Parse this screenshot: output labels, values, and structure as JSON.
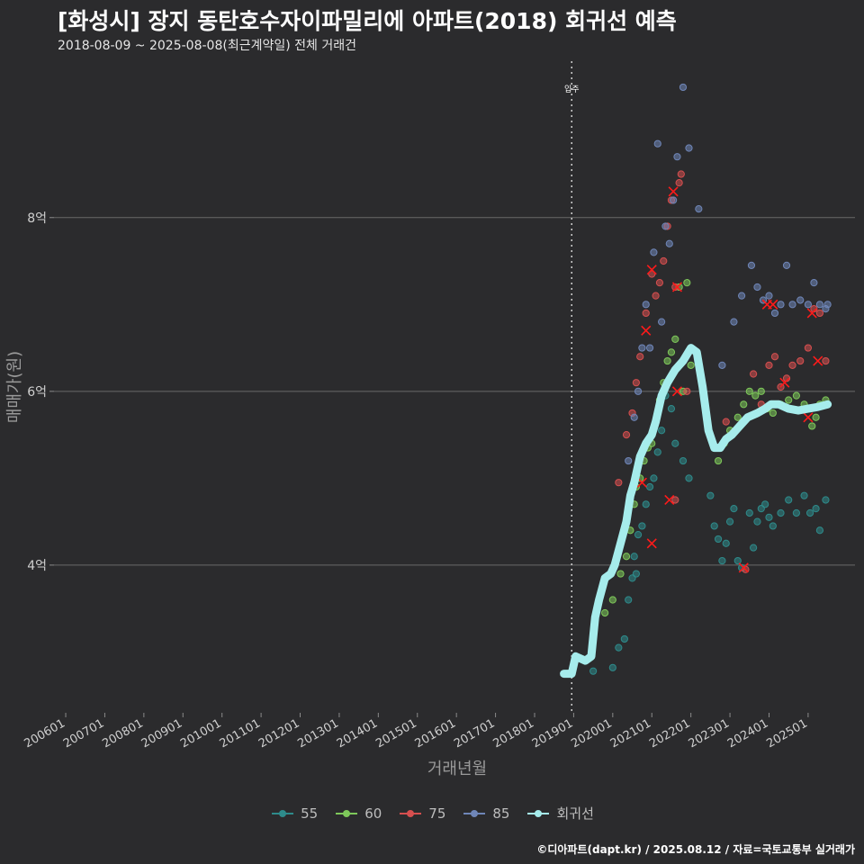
{
  "header": {
    "title": "[화성시] 장지 동탄호수자이파밀리에 아파트(2018) 회귀선 예측",
    "subtitle": "2018-08-09 ~ 2025-08-08(최근계약일) 전체 거래건"
  },
  "footer": {
    "credit": "©디아파트(dapt.kr) / 2025.08.12 / 자료=국토교통부 실거래가"
  },
  "colors": {
    "s55": "#2e8b8b",
    "s60": "#7ec85a",
    "s75": "#d64f4f",
    "s85": "#6f86b8",
    "regression": "#a6ecec",
    "background": "#2b2b2d",
    "grid": "#6a6a6a",
    "marker": "#ff1a1a"
  },
  "chart_data": {
    "type": "scatter",
    "title": "[화성시] 장지 동탄호수자이파밀리에 아파트(2018) 회귀선 예측",
    "xlabel": "거래년월",
    "ylabel": "매매가(원)",
    "x_range": [
      2005.7,
      2026.2
    ],
    "y_range": [
      2.3,
      9.8
    ],
    "y_ticks": [
      {
        "value": 4,
        "label": "4억"
      },
      {
        "value": 6,
        "label": "6억"
      },
      {
        "value": 8,
        "label": "8억"
      }
    ],
    "x_ticks": [
      "200601",
      "200701",
      "200801",
      "200901",
      "201001",
      "201101",
      "201201",
      "201301",
      "201401",
      "201501",
      "201601",
      "201701",
      "201801",
      "201901",
      "202001",
      "202101",
      "202201",
      "202301",
      "202401",
      "202501"
    ],
    "vline": {
      "x": 2018.95,
      "label": "입주"
    },
    "series": [
      {
        "name": "55",
        "color": "#2e8b8b",
        "points": [
          [
            2019.5,
            2.78
          ],
          [
            2020.0,
            2.82
          ],
          [
            2020.15,
            3.05
          ],
          [
            2020.3,
            3.15
          ],
          [
            2020.4,
            3.6
          ],
          [
            2020.5,
            3.85
          ],
          [
            2020.55,
            4.1
          ],
          [
            2020.6,
            3.9
          ],
          [
            2020.65,
            4.35
          ],
          [
            2020.75,
            4.45
          ],
          [
            2020.85,
            4.7
          ],
          [
            2020.95,
            4.9
          ],
          [
            2021.05,
            5.0
          ],
          [
            2021.15,
            5.3
          ],
          [
            2021.25,
            5.55
          ],
          [
            2021.35,
            5.95
          ],
          [
            2021.5,
            5.8
          ],
          [
            2021.6,
            5.4
          ],
          [
            2021.8,
            5.2
          ],
          [
            2021.95,
            5.0
          ],
          [
            2022.5,
            4.8
          ],
          [
            2022.6,
            4.45
          ],
          [
            2022.7,
            4.3
          ],
          [
            2022.8,
            4.05
          ],
          [
            2022.9,
            4.25
          ],
          [
            2023.0,
            4.5
          ],
          [
            2023.1,
            4.65
          ],
          [
            2023.2,
            4.05
          ],
          [
            2023.3,
            3.97
          ],
          [
            2023.5,
            4.6
          ],
          [
            2023.6,
            4.2
          ],
          [
            2023.7,
            4.5
          ],
          [
            2023.8,
            4.65
          ],
          [
            2023.9,
            4.7
          ],
          [
            2024.0,
            4.55
          ],
          [
            2024.1,
            4.45
          ],
          [
            2024.3,
            4.6
          ],
          [
            2024.5,
            4.75
          ],
          [
            2024.7,
            4.6
          ],
          [
            2024.9,
            4.8
          ],
          [
            2025.05,
            4.6
          ],
          [
            2025.2,
            4.65
          ],
          [
            2025.3,
            4.4
          ],
          [
            2025.45,
            4.75
          ]
        ]
      },
      {
        "name": "60",
        "color": "#7ec85a",
        "points": [
          [
            2019.8,
            3.45
          ],
          [
            2020.0,
            3.6
          ],
          [
            2020.2,
            3.9
          ],
          [
            2020.35,
            4.1
          ],
          [
            2020.45,
            4.4
          ],
          [
            2020.55,
            4.7
          ],
          [
            2020.6,
            4.9
          ],
          [
            2020.7,
            5.0
          ],
          [
            2020.8,
            5.2
          ],
          [
            2020.9,
            5.35
          ],
          [
            2021.0,
            5.4
          ],
          [
            2021.1,
            5.65
          ],
          [
            2021.2,
            5.9
          ],
          [
            2021.3,
            6.1
          ],
          [
            2021.4,
            6.35
          ],
          [
            2021.5,
            6.45
          ],
          [
            2021.6,
            6.6
          ],
          [
            2021.7,
            7.2
          ],
          [
            2021.8,
            6.0
          ],
          [
            2021.9,
            7.25
          ],
          [
            2022.0,
            6.3
          ],
          [
            2022.7,
            5.2
          ],
          [
            2022.85,
            5.4
          ],
          [
            2023.0,
            5.55
          ],
          [
            2023.2,
            5.7
          ],
          [
            2023.35,
            5.85
          ],
          [
            2023.5,
            6.0
          ],
          [
            2023.65,
            5.95
          ],
          [
            2023.8,
            6.0
          ],
          [
            2023.95,
            5.8
          ],
          [
            2024.1,
            5.75
          ],
          [
            2024.3,
            5.85
          ],
          [
            2024.5,
            5.9
          ],
          [
            2024.7,
            5.95
          ],
          [
            2024.9,
            5.85
          ],
          [
            2025.1,
            5.6
          ],
          [
            2025.2,
            5.7
          ],
          [
            2025.3,
            5.85
          ],
          [
            2025.45,
            5.9
          ]
        ]
      },
      {
        "name": "75",
        "color": "#d64f4f",
        "points": [
          [
            2020.15,
            4.95
          ],
          [
            2020.35,
            5.5
          ],
          [
            2020.5,
            5.75
          ],
          [
            2020.6,
            6.1
          ],
          [
            2020.7,
            6.4
          ],
          [
            2020.85,
            6.9
          ],
          [
            2021.0,
            7.35
          ],
          [
            2021.1,
            7.1
          ],
          [
            2021.2,
            7.25
          ],
          [
            2021.3,
            7.5
          ],
          [
            2021.4,
            7.9
          ],
          [
            2021.5,
            8.2
          ],
          [
            2021.6,
            7.2
          ],
          [
            2021.7,
            8.4
          ],
          [
            2021.75,
            8.5
          ],
          [
            2021.9,
            6.0
          ],
          [
            2021.6,
            4.75
          ],
          [
            2022.9,
            5.65
          ],
          [
            2023.4,
            3.95
          ],
          [
            2023.6,
            6.2
          ],
          [
            2023.8,
            5.85
          ],
          [
            2024.0,
            6.3
          ],
          [
            2024.15,
            6.4
          ],
          [
            2024.3,
            6.05
          ],
          [
            2024.45,
            6.15
          ],
          [
            2024.6,
            6.3
          ],
          [
            2024.8,
            6.35
          ],
          [
            2025.0,
            6.5
          ],
          [
            2025.15,
            6.95
          ],
          [
            2025.3,
            6.9
          ],
          [
            2025.45,
            6.35
          ]
        ]
      },
      {
        "name": "85",
        "color": "#6f86b8",
        "points": [
          [
            2020.4,
            5.2
          ],
          [
            2020.55,
            5.7
          ],
          [
            2020.65,
            6.0
          ],
          [
            2020.75,
            6.5
          ],
          [
            2020.85,
            7.0
          ],
          [
            2020.95,
            6.5
          ],
          [
            2021.05,
            7.6
          ],
          [
            2021.15,
            8.85
          ],
          [
            2021.25,
            6.8
          ],
          [
            2021.35,
            7.9
          ],
          [
            2021.45,
            7.7
          ],
          [
            2021.55,
            8.2
          ],
          [
            2021.65,
            8.7
          ],
          [
            2021.8,
            9.5
          ],
          [
            2021.95,
            8.8
          ],
          [
            2022.2,
            8.1
          ],
          [
            2022.8,
            6.3
          ],
          [
            2023.1,
            6.8
          ],
          [
            2023.3,
            7.1
          ],
          [
            2023.55,
            7.45
          ],
          [
            2023.7,
            7.2
          ],
          [
            2023.85,
            7.05
          ],
          [
            2024.0,
            7.1
          ],
          [
            2024.15,
            6.9
          ],
          [
            2024.3,
            7.0
          ],
          [
            2024.45,
            7.45
          ],
          [
            2024.6,
            7.0
          ],
          [
            2024.8,
            7.05
          ],
          [
            2025.0,
            7.0
          ],
          [
            2025.15,
            7.25
          ],
          [
            2025.3,
            7.0
          ],
          [
            2025.45,
            6.95
          ],
          [
            2025.5,
            7.0
          ]
        ]
      },
      {
        "name": "회귀선",
        "color": "#a6ecec",
        "line": [
          [
            2018.75,
            2.75
          ],
          [
            2018.95,
            2.75
          ],
          [
            2019.05,
            2.95
          ],
          [
            2019.3,
            2.9
          ],
          [
            2019.45,
            2.95
          ],
          [
            2019.55,
            3.4
          ],
          [
            2019.65,
            3.6
          ],
          [
            2019.8,
            3.85
          ],
          [
            2019.95,
            3.9
          ],
          [
            2020.05,
            4.0
          ],
          [
            2020.2,
            4.25
          ],
          [
            2020.35,
            4.5
          ],
          [
            2020.45,
            4.8
          ],
          [
            2020.55,
            4.95
          ],
          [
            2020.7,
            5.25
          ],
          [
            2020.85,
            5.4
          ],
          [
            2021.0,
            5.5
          ],
          [
            2021.1,
            5.65
          ],
          [
            2021.25,
            5.95
          ],
          [
            2021.4,
            6.1
          ],
          [
            2021.6,
            6.25
          ],
          [
            2021.8,
            6.35
          ],
          [
            2022.0,
            6.5
          ],
          [
            2022.15,
            6.45
          ],
          [
            2022.3,
            6.05
          ],
          [
            2022.45,
            5.55
          ],
          [
            2022.6,
            5.35
          ],
          [
            2022.75,
            5.35
          ],
          [
            2022.9,
            5.45
          ],
          [
            2023.05,
            5.5
          ],
          [
            2023.25,
            5.6
          ],
          [
            2023.45,
            5.7
          ],
          [
            2023.7,
            5.75
          ],
          [
            2023.9,
            5.8
          ],
          [
            2024.05,
            5.85
          ],
          [
            2024.25,
            5.85
          ],
          [
            2024.5,
            5.8
          ],
          [
            2024.75,
            5.78
          ],
          [
            2025.0,
            5.8
          ],
          [
            2025.25,
            5.82
          ],
          [
            2025.5,
            5.85
          ]
        ]
      }
    ],
    "highlighted": [
      [
        2020.75,
        4.95
      ],
      [
        2020.85,
        6.7
      ],
      [
        2021.0,
        7.4
      ],
      [
        2021.0,
        4.25
      ],
      [
        2021.45,
        4.75
      ],
      [
        2021.55,
        8.3
      ],
      [
        2021.65,
        7.2
      ],
      [
        2021.65,
        6.0
      ],
      [
        2023.35,
        3.97
      ],
      [
        2023.95,
        7.0
      ],
      [
        2024.1,
        7.0
      ],
      [
        2024.4,
        6.1
      ],
      [
        2025.0,
        5.7
      ],
      [
        2025.1,
        6.9
      ],
      [
        2025.25,
        6.35
      ]
    ],
    "legend": [
      "55",
      "60",
      "75",
      "85",
      "회귀선"
    ]
  }
}
